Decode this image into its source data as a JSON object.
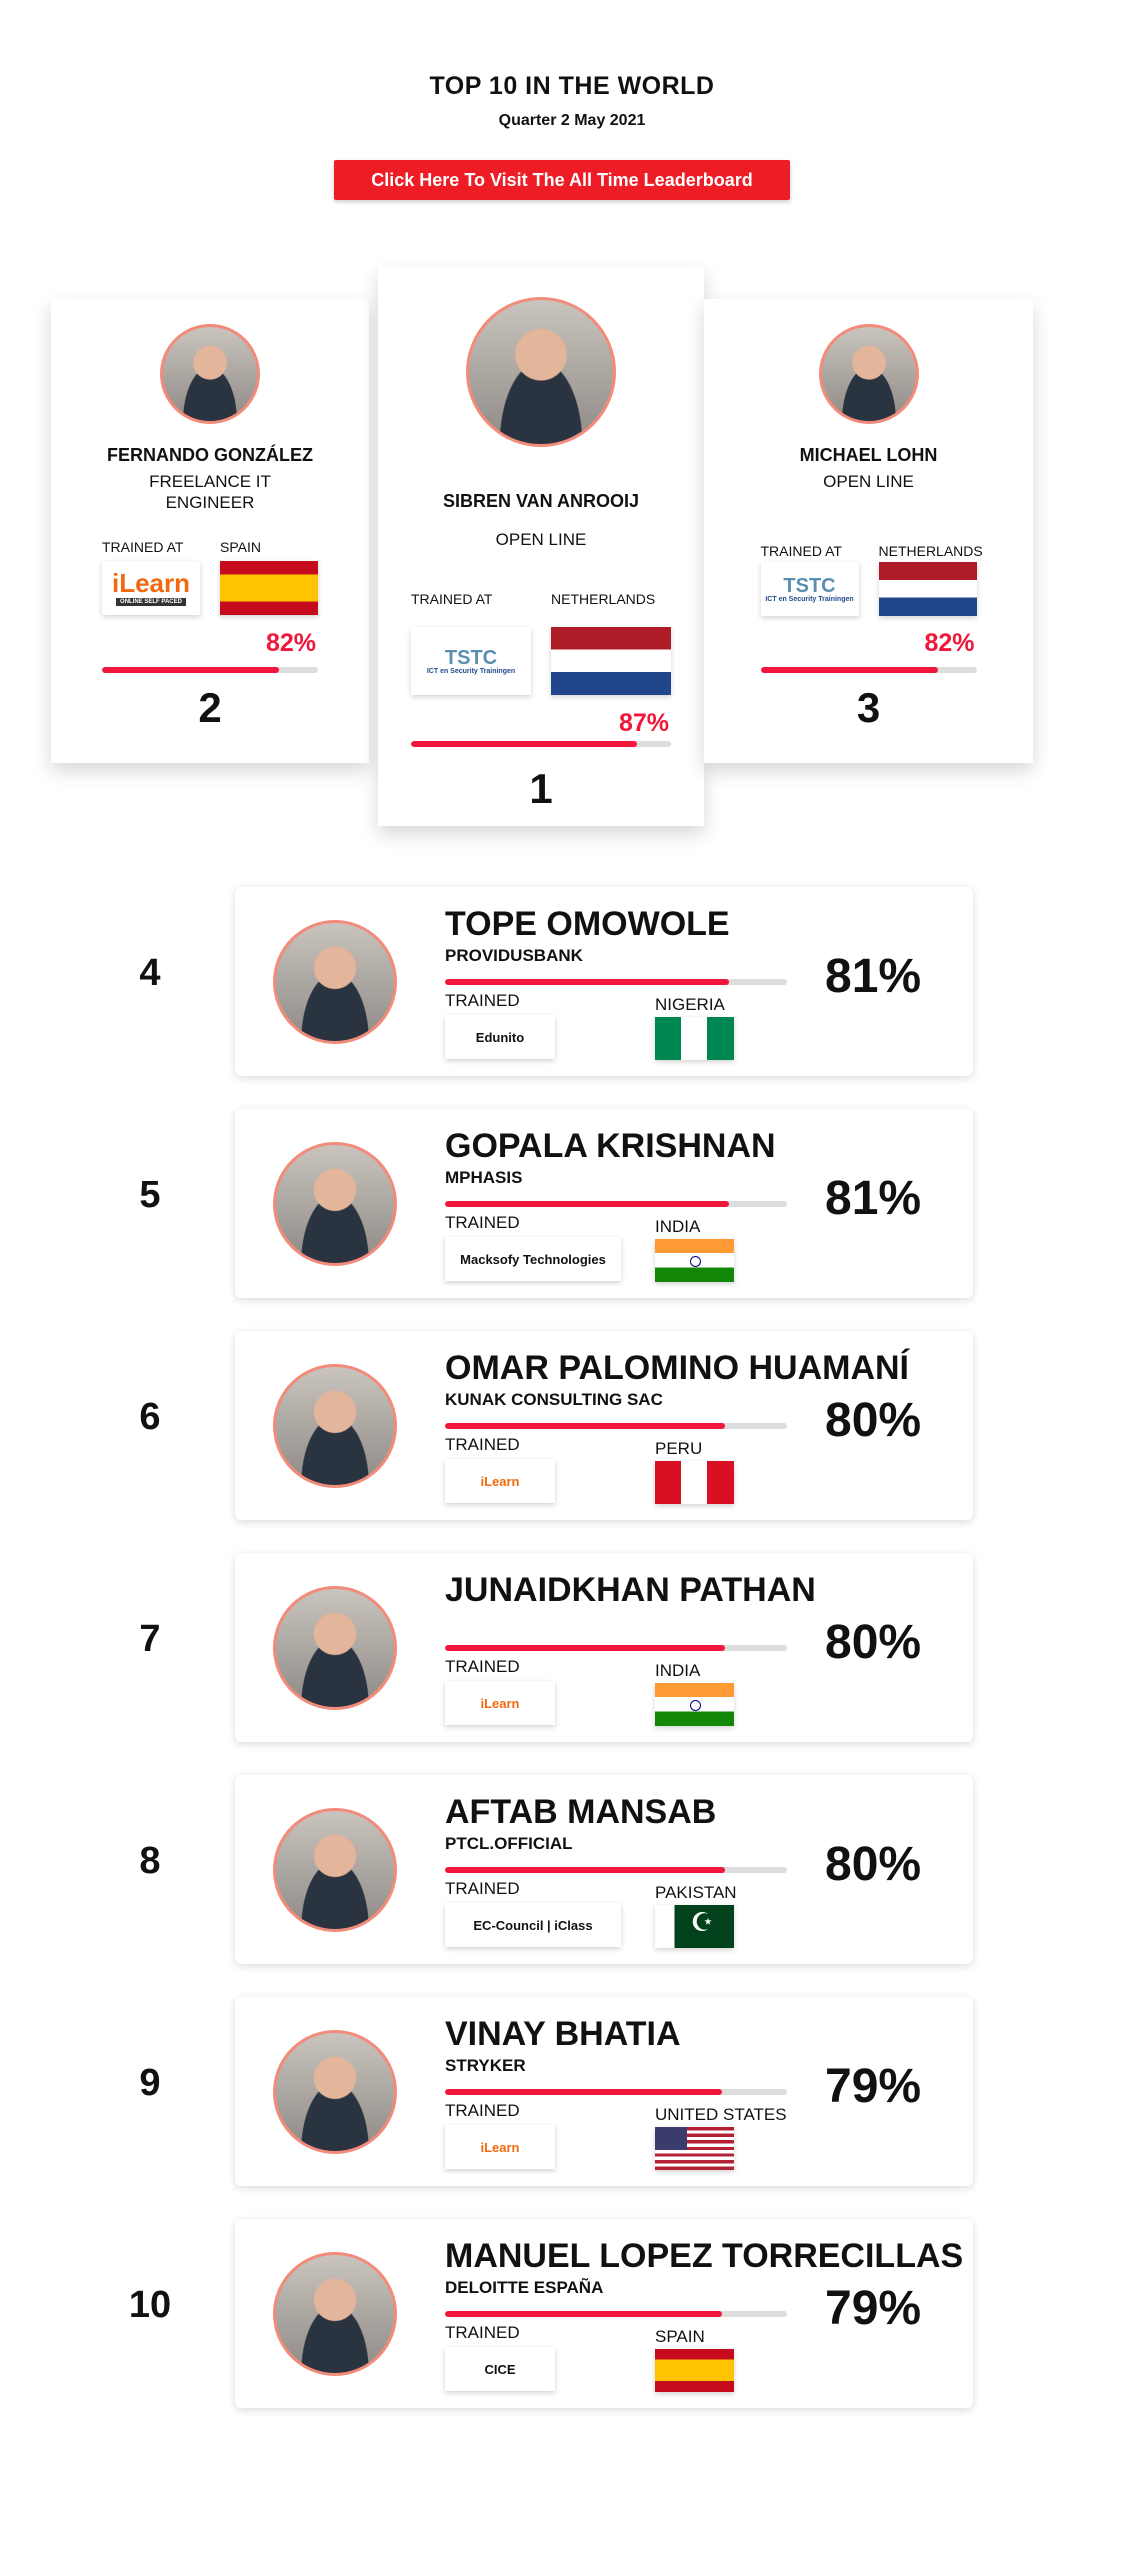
{
  "header": {
    "title": "TOP 10 IN THE WORLD",
    "subtitle": "Quarter 2 May 2021",
    "cta_label": "Click Here To Visit The All Time Leaderboard"
  },
  "podium": [
    {
      "rank": "1",
      "name": "SIBREN VAN ANROOIJ",
      "company": "OPEN LINE",
      "trained_label": "TRAINED AT",
      "trainer": "TSTC",
      "trainer_sub": "ICT en Security Trainingen",
      "country": "NETHERLANDS",
      "flag": "nl",
      "percent": "87%",
      "progress": 87
    },
    {
      "rank": "2",
      "name": "FERNANDO GONZÁLEZ",
      "company": "FREELANCE IT ENGINEER",
      "trained_label": "TRAINED AT",
      "trainer": "iLearn",
      "trainer_sub": "ONLINE SELF PACED",
      "country": "SPAIN",
      "flag": "es",
      "percent": "82%",
      "progress": 82
    },
    {
      "rank": "3",
      "name": "MICHAEL LOHN",
      "company": "OPEN LINE",
      "trained_label": "TRAINED AT",
      "trainer": "TSTC",
      "trainer_sub": "ICT en Security Trainingen",
      "country": "NETHERLANDS",
      "flag": "nl",
      "percent": "82%",
      "progress": 82
    }
  ],
  "rows": [
    {
      "rank": "4",
      "name": "TOPE OMOWOLE",
      "company": "PROVIDUSBANK",
      "trained_label": "TRAINED",
      "trainer": "Edunito",
      "country": "NIGERIA",
      "flag": "ng",
      "percent": "81%",
      "progress": 81
    },
    {
      "rank": "5",
      "name": "GOPALA KRISHNAN",
      "company": "MPHASIS",
      "trained_label": "TRAINED",
      "trainer": "Macksofy Technologies",
      "country": "INDIA",
      "flag": "in",
      "percent": "81%",
      "progress": 81
    },
    {
      "rank": "6",
      "name": "OMAR PALOMINO HUAMANÍ",
      "company": "KUNAK CONSULTING SAC",
      "trained_label": "TRAINED",
      "trainer": "iLearn",
      "country": "PERU",
      "flag": "pe",
      "percent": "80%",
      "progress": 80
    },
    {
      "rank": "7",
      "name": "JUNAIDKHAN PATHAN",
      "company": "",
      "trained_label": "TRAINED",
      "trainer": "iLearn",
      "country": "INDIA",
      "flag": "in",
      "percent": "80%",
      "progress": 80
    },
    {
      "rank": "8",
      "name": "AFTAB MANSAB",
      "company": "PTCL.OFFICIAL",
      "trained_label": "TRAINED",
      "trainer": "EC-Council | iClass",
      "country": "PAKISTAN",
      "flag": "pk",
      "percent": "80%",
      "progress": 80
    },
    {
      "rank": "9",
      "name": "VINAY BHATIA",
      "company": "STRYKER",
      "trained_label": "TRAINED",
      "trainer": "iLearn",
      "country": "UNITED STATES",
      "flag": "us",
      "percent": "79%",
      "progress": 79
    },
    {
      "rank": "10",
      "name": "MANUEL LOPEZ TORRECILLAS",
      "company": "DELOITTE ESPAÑA",
      "trained_label": "TRAINED",
      "trainer": "CICE",
      "country": "SPAIN",
      "flag": "es",
      "percent": "79%",
      "progress": 79
    }
  ],
  "colors": {
    "accent": "#f0173a",
    "button": "#ee1c25",
    "avatar_border": "#f28b7a"
  }
}
